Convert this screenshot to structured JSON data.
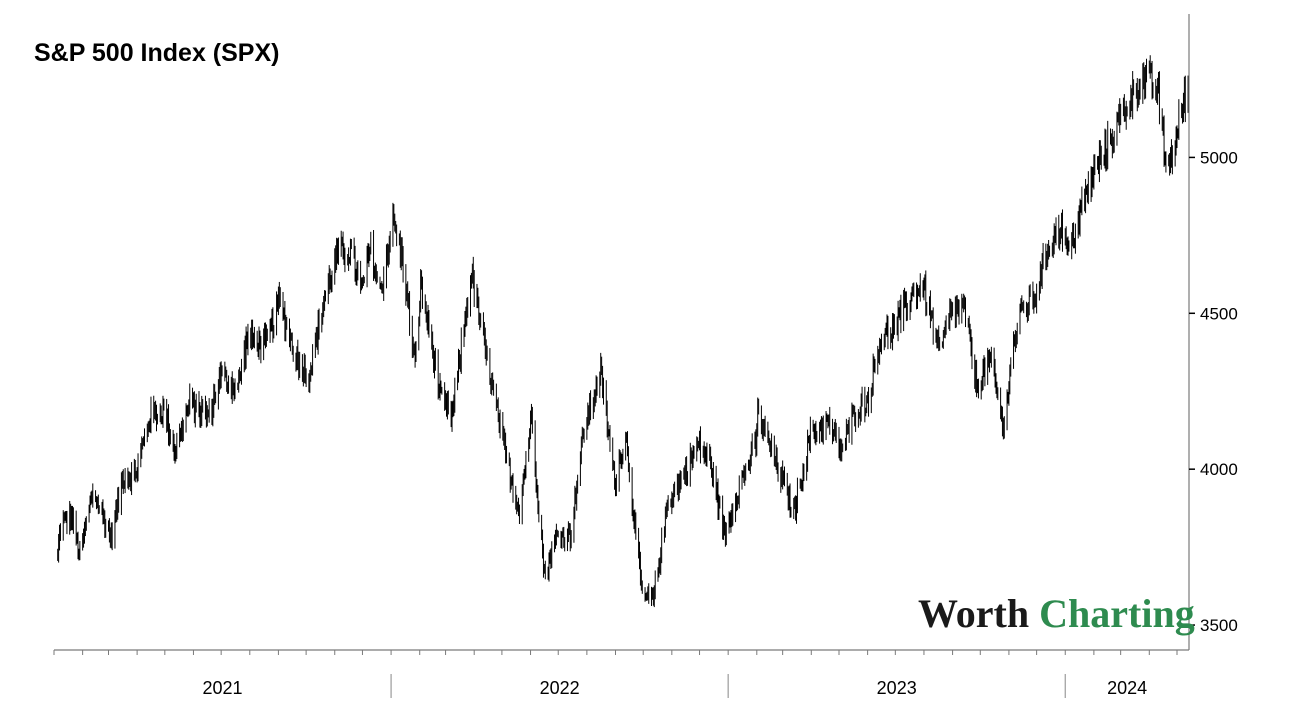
{
  "chart_data": {
    "type": "line",
    "title": "S&P 500 Index (SPX)",
    "xlabel": "",
    "ylabel": "",
    "ylim": [
      3420,
      5460
    ],
    "xlim": [
      "2021-01-01",
      "2024-05-14"
    ],
    "yticks": [
      3500,
      4000,
      4500,
      5000
    ],
    "ytick_labels": [
      "3500",
      "4000",
      "4500",
      "5000"
    ],
    "y_axis_position": "right",
    "xticks": [
      "2021",
      "2022",
      "2023",
      "2024"
    ],
    "year_separators": [
      "2022-01-01",
      "2023-01-01",
      "2024-01-01"
    ],
    "grid": false,
    "legend": "none",
    "series": [
      {
        "style": "daily high-low bars",
        "points": [
          [
            "2021-01-05",
            3720
          ],
          [
            "2021-01-08",
            3820
          ],
          [
            "2021-01-20",
            3850
          ],
          [
            "2021-01-29",
            3720
          ],
          [
            "2021-02-12",
            3930
          ],
          [
            "2021-03-04",
            3780
          ],
          [
            "2021-03-17",
            3980
          ],
          [
            "2021-03-30",
            3980
          ],
          [
            "2021-04-15",
            4170
          ],
          [
            "2021-04-30",
            4190
          ],
          [
            "2021-05-12",
            4060
          ],
          [
            "2021-05-28",
            4210
          ],
          [
            "2021-06-18",
            4170
          ],
          [
            "2021-06-30",
            4300
          ],
          [
            "2021-07-19",
            4260
          ],
          [
            "2021-07-29",
            4420
          ],
          [
            "2021-08-19",
            4400
          ],
          [
            "2021-09-02",
            4540
          ],
          [
            "2021-09-20",
            4360
          ],
          [
            "2021-10-04",
            4300
          ],
          [
            "2021-10-21",
            4550
          ],
          [
            "2021-11-04",
            4690
          ],
          [
            "2021-11-18",
            4700
          ],
          [
            "2021-11-30",
            4570
          ],
          [
            "2021-12-10",
            4710
          ],
          [
            "2021-12-20",
            4560
          ],
          [
            "2022-01-03",
            4800
          ],
          [
            "2022-01-14",
            4660
          ],
          [
            "2022-01-27",
            4330
          ],
          [
            "2022-02-02",
            4590
          ],
          [
            "2022-02-14",
            4400
          ],
          [
            "2022-02-24",
            4220
          ],
          [
            "2022-03-08",
            4170
          ],
          [
            "2022-03-29",
            4630
          ],
          [
            "2022-04-11",
            4410
          ],
          [
            "2022-04-29",
            4130
          ],
          [
            "2022-05-09",
            3990
          ],
          [
            "2022-05-20",
            3870
          ],
          [
            "2022-06-02",
            4170
          ],
          [
            "2022-06-16",
            3660
          ],
          [
            "2022-06-30",
            3790
          ],
          [
            "2022-07-14",
            3790
          ],
          [
            "2022-07-29",
            4130
          ],
          [
            "2022-08-16",
            4310
          ],
          [
            "2022-08-31",
            3960
          ],
          [
            "2022-09-12",
            4110
          ],
          [
            "2022-09-30",
            3590
          ],
          [
            "2022-10-12",
            3580
          ],
          [
            "2022-10-28",
            3900
          ],
          [
            "2022-11-10",
            3960
          ],
          [
            "2022-11-30",
            4080
          ],
          [
            "2022-12-13",
            4020
          ],
          [
            "2022-12-28",
            3790
          ],
          [
            "2023-01-10",
            3920
          ],
          [
            "2023-01-31",
            4080
          ],
          [
            "2023-02-02",
            4180
          ],
          [
            "2023-02-23",
            4010
          ],
          [
            "2023-03-13",
            3860
          ],
          [
            "2023-03-31",
            4110
          ],
          [
            "2023-04-18",
            4150
          ],
          [
            "2023-05-04",
            4060
          ],
          [
            "2023-05-19",
            4190
          ],
          [
            "2023-06-01",
            4220
          ],
          [
            "2023-06-15",
            4420
          ],
          [
            "2023-06-30",
            4450
          ],
          [
            "2023-07-19",
            4560
          ],
          [
            "2023-07-31",
            4590
          ],
          [
            "2023-08-18",
            4370
          ],
          [
            "2023-08-31",
            4510
          ],
          [
            "2023-09-14",
            4510
          ],
          [
            "2023-09-27",
            4270
          ],
          [
            "2023-10-12",
            4350
          ],
          [
            "2023-10-27",
            4120
          ],
          [
            "2023-11-03",
            4360
          ],
          [
            "2023-11-14",
            4500
          ],
          [
            "2023-11-30",
            4560
          ],
          [
            "2023-12-14",
            4720
          ],
          [
            "2023-12-28",
            4780
          ],
          [
            "2024-01-04",
            4690
          ],
          [
            "2024-01-19",
            4840
          ],
          [
            "2024-02-02",
            4960
          ],
          [
            "2024-02-15",
            5030
          ],
          [
            "2024-03-01",
            5130
          ],
          [
            "2024-03-21",
            5240
          ],
          [
            "2024-04-01",
            5250
          ],
          [
            "2024-04-11",
            5200
          ],
          [
            "2024-04-19",
            4970
          ],
          [
            "2024-04-30",
            5040
          ],
          [
            "2024-05-03",
            5120
          ],
          [
            "2024-05-14",
            5240
          ]
        ]
      }
    ]
  },
  "branding": {
    "logo_word1": "Worth",
    "logo_word2": "Charting",
    "logo_color_word1": "#1a1a1a",
    "logo_color_word2": "#2e8b4f"
  },
  "colors": {
    "line": "#000000",
    "axis": "#7a7a7a",
    "background": "#ffffff"
  }
}
